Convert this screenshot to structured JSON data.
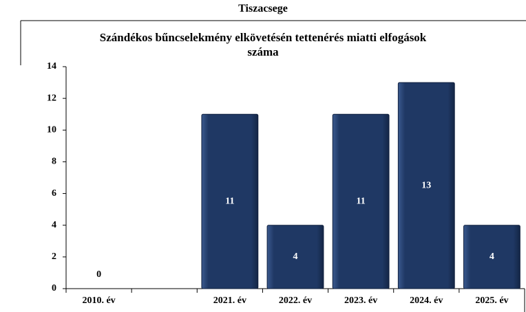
{
  "chart_data": {
    "type": "bar",
    "suptitle": "Tiszacsege",
    "title": "Szándékos bűncselekmény elkövetésén tettenérés miatti elfogások száma",
    "categories": [
      "2010. év",
      null,
      "2021. év",
      "2022. év",
      "2023. év",
      "2024. év",
      "2025. év"
    ],
    "values": [
      0,
      null,
      11,
      4,
      11,
      13,
      4
    ],
    "color": "#1f3864",
    "ylim": [
      0,
      14
    ],
    "yticks": [
      0,
      2,
      4,
      6,
      8,
      10,
      12,
      14
    ],
    "grid": false
  }
}
